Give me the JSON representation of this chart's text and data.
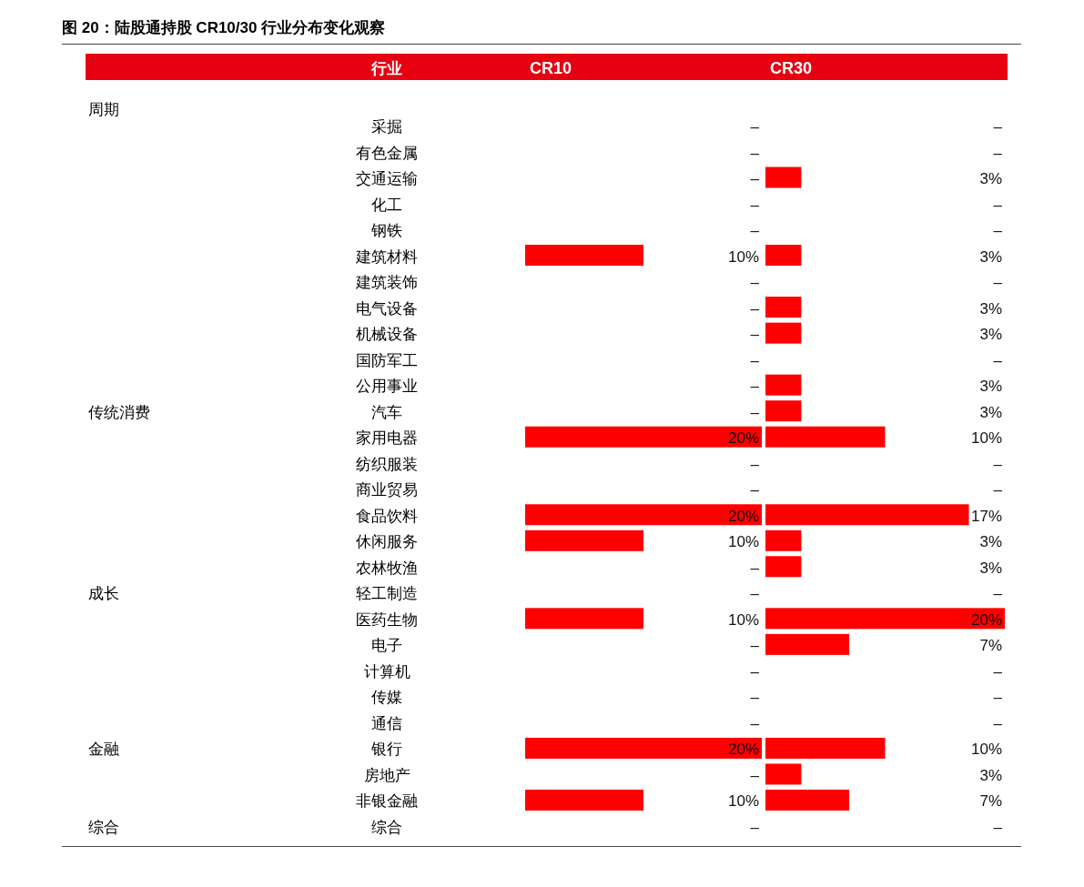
{
  "chart_data": [
    {
      "type": "bar",
      "orientation": "horizontal",
      "title": "图 20：陆股通持股 CR10/30 行业分布变化观察",
      "ylabel": "行业",
      "xlabel": "CR10",
      "tick_labels": "y",
      "color": "#ff0000",
      "categories": [
        "采掘",
        "有色金属",
        "交通运输",
        "化工",
        "钢铁",
        "建筑材料",
        "建筑装饰",
        "电气设备",
        "机械设备",
        "国防军工",
        "公用事业",
        "汽车",
        "家用电器",
        "纺织服装",
        "商业贸易",
        "食品饮料",
        "休闲服务",
        "农林牧渔",
        "轻工制造",
        "医药生物",
        "电子",
        "计算机",
        "传媒",
        "通信",
        "银行",
        "房地产",
        "非银金融",
        "综合"
      ],
      "values": [
        0,
        0,
        0,
        0,
        0,
        10,
        0,
        0,
        0,
        0,
        0,
        0,
        20,
        0,
        0,
        20,
        10,
        0,
        0,
        10,
        0,
        0,
        0,
        0,
        20,
        0,
        10,
        0
      ],
      "value_labels": [
        "–",
        "–",
        "–",
        "–",
        "–",
        "10%",
        "–",
        "–",
        "–",
        "–",
        "–",
        "–",
        "20%",
        "–",
        "–",
        "20%",
        "10%",
        "–",
        "–",
        "10%",
        "–",
        "–",
        "–",
        "–",
        "20%",
        "–",
        "10%",
        "–"
      ],
      "xlim": [
        0,
        20
      ],
      "annotations": [
        "周期",
        "传统消费",
        "成长",
        "金融",
        "综合"
      ]
    },
    {
      "type": "bar",
      "orientation": "horizontal",
      "xlabel": "CR30",
      "tick_labels": false,
      "color": "#ff0000",
      "categories": [
        "采掘",
        "有色金属",
        "交通运输",
        "化工",
        "钢铁",
        "建筑材料",
        "建筑装饰",
        "电气设备",
        "机械设备",
        "国防军工",
        "公用事业",
        "汽车",
        "家用电器",
        "纺织服装",
        "商业贸易",
        "食品饮料",
        "休闲服务",
        "农林牧渔",
        "轻工制造",
        "医药生物",
        "电子",
        "计算机",
        "传媒",
        "通信",
        "银行",
        "房地产",
        "非银金融",
        "综合"
      ],
      "values": [
        0,
        0,
        3,
        0,
        0,
        3,
        0,
        3,
        3,
        0,
        3,
        3,
        10,
        0,
        0,
        17,
        3,
        3,
        0,
        20,
        7,
        0,
        0,
        0,
        10,
        3,
        7,
        0
      ],
      "value_labels": [
        "–",
        "–",
        "3%",
        "–",
        "–",
        "3%",
        "–",
        "3%",
        "3%",
        "–",
        "3%",
        "3%",
        "10%",
        "–",
        "–",
        "17%",
        "3%",
        "3%",
        "–",
        "20%",
        "7%",
        "–",
        "–",
        "–",
        "10%",
        "3%",
        "7%",
        "–"
      ],
      "xlim": [
        0,
        20
      ]
    }
  ]
}
